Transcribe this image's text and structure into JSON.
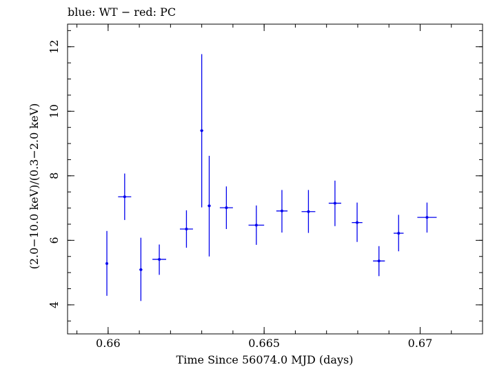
{
  "chart_data": {
    "type": "scatter",
    "title": "blue: WT − red: PC",
    "xlabel": "Time Since 56074.0 MJD (days)",
    "ylabel": "(2.0−10.0 keV)/(0.3−2.0 keV)",
    "xlim": [
      0.6587,
      0.672
    ],
    "ylim": [
      3.1,
      12.7
    ],
    "x_ticks": [
      {
        "value": 0.66,
        "label": "0.66"
      },
      {
        "value": 0.665,
        "label": "0.665"
      },
      {
        "value": 0.67,
        "label": "0.67"
      }
    ],
    "x_minor_step": 0.001,
    "y_ticks": [
      {
        "value": 4,
        "label": "4"
      },
      {
        "value": 6,
        "label": "6"
      },
      {
        "value": 8,
        "label": "8"
      },
      {
        "value": 10,
        "label": "10"
      },
      {
        "value": 12,
        "label": "12"
      }
    ],
    "y_minor_step": 0.5,
    "grid": false,
    "series": [
      {
        "color": "#0000ee",
        "points": [
          {
            "x": 0.65996,
            "xerr": 3e-05,
            "y": 5.28,
            "ylo": 4.28,
            "yhi": 6.29
          },
          {
            "x": 0.66053,
            "xerr": 0.00021,
            "y": 7.35,
            "ylo": 6.63,
            "yhi": 8.07
          },
          {
            "x": 0.66105,
            "xerr": 5e-05,
            "y": 5.09,
            "ylo": 4.12,
            "yhi": 6.08
          },
          {
            "x": 0.66164,
            "xerr": 0.00022,
            "y": 5.41,
            "ylo": 4.93,
            "yhi": 5.87
          },
          {
            "x": 0.66251,
            "xerr": 0.00021,
            "y": 6.35,
            "ylo": 5.77,
            "yhi": 6.93
          },
          {
            "x": 0.663,
            "xerr": 5e-05,
            "y": 9.4,
            "ylo": 7.02,
            "yhi": 11.77
          },
          {
            "x": 0.66324,
            "xerr": 5e-05,
            "y": 7.07,
            "ylo": 5.5,
            "yhi": 8.62
          },
          {
            "x": 0.66379,
            "xerr": 0.00021,
            "y": 7.01,
            "ylo": 6.35,
            "yhi": 7.67
          },
          {
            "x": 0.66475,
            "xerr": 0.00025,
            "y": 6.47,
            "ylo": 5.86,
            "yhi": 7.08
          },
          {
            "x": 0.66557,
            "xerr": 0.00018,
            "y": 6.91,
            "ylo": 6.24,
            "yhi": 7.56
          },
          {
            "x": 0.66642,
            "xerr": 0.00022,
            "y": 6.89,
            "ylo": 6.23,
            "yhi": 7.56
          },
          {
            "x": 0.66727,
            "xerr": 0.0002,
            "y": 7.15,
            "ylo": 6.44,
            "yhi": 7.85
          },
          {
            "x": 0.66798,
            "xerr": 0.00017,
            "y": 6.55,
            "ylo": 5.95,
            "yhi": 7.17
          },
          {
            "x": 0.66868,
            "xerr": 0.00019,
            "y": 5.36,
            "ylo": 4.89,
            "yhi": 5.82
          },
          {
            "x": 0.66931,
            "xerr": 0.00016,
            "y": 6.22,
            "ylo": 5.66,
            "yhi": 6.79
          },
          {
            "x": 0.67022,
            "xerr": 0.00031,
            "y": 6.71,
            "ylo": 6.24,
            "yhi": 7.17
          }
        ]
      }
    ]
  }
}
